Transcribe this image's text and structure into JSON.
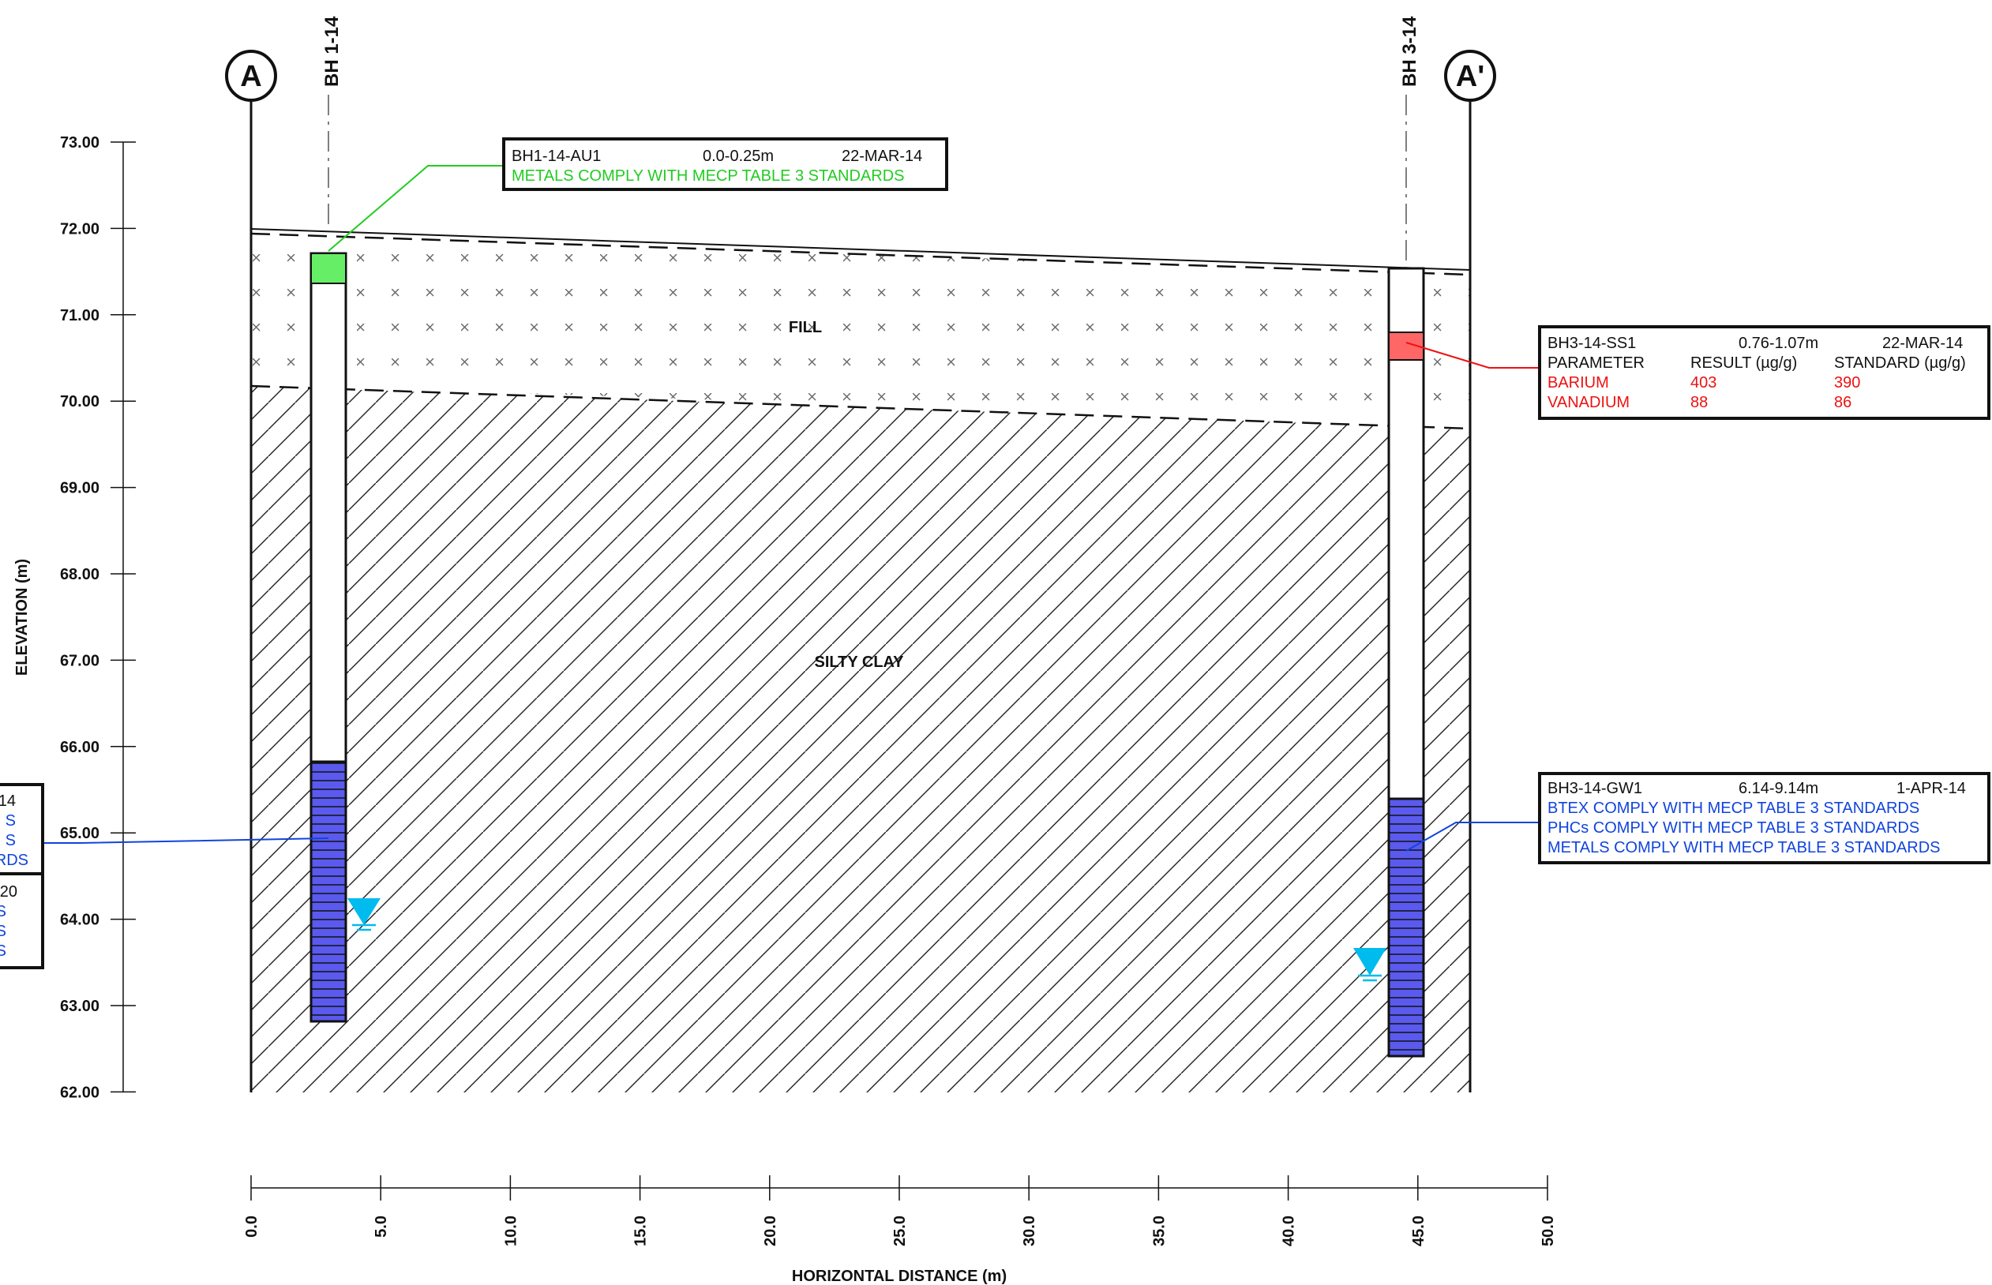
{
  "axis": {
    "y_label": "ELEVATION (m)",
    "x_label": "HORIZONTAL DISTANCE (m)",
    "y_ticks": [
      "73.00",
      "72.00",
      "71.00",
      "70.00",
      "69.00",
      "68.00",
      "67.00",
      "66.00",
      "65.00",
      "64.00",
      "63.00",
      "62.00"
    ],
    "y_values": [
      73,
      72,
      71,
      70,
      69,
      68,
      67,
      66,
      65,
      64,
      63,
      62
    ],
    "x_ticks": [
      "0.0",
      "5.0",
      "10.0",
      "15.0",
      "20.0",
      "25.0",
      "30.0",
      "35.0",
      "40.0",
      "45.0",
      "50.0"
    ],
    "x_values": [
      0,
      5,
      10,
      15,
      20,
      25,
      30,
      35,
      40,
      45,
      50
    ]
  },
  "section": {
    "start_label": "A",
    "end_label": "A'"
  },
  "strata": {
    "fill_label": "FILL",
    "clay_label": "SILTY CLAY"
  },
  "colors": {
    "green": "#22cc22",
    "red": "#ee1111",
    "blue": "#1144dd",
    "screen": "#5a5aee",
    "water": "#00bbee",
    "green_sample": "#66ee66",
    "red_sample": "#ff6666"
  },
  "boreholes": [
    {
      "id": "BH 1-14"
    },
    {
      "id": "BH 3-14"
    }
  ],
  "callouts": {
    "bh1_au1": {
      "sample": "BH1-14-AU1",
      "depth": "0.0-0.25m",
      "date": "22-MAR-14",
      "note": "METALS COMPLY WITH MECP TABLE 3 STANDARDS"
    },
    "bh3_ss1": {
      "sample": "BH3-14-SS1",
      "depth": "0.76-1.07m",
      "date": "22-MAR-14",
      "col_param": "PARAMETER",
      "col_result": "RESULT (µg/g)",
      "col_standard": "STANDARD (µg/g)",
      "rows": [
        {
          "param": "BARIUM",
          "result": "403",
          "standard": "390"
        },
        {
          "param": "VANADIUM",
          "result": "88",
          "standard": "86"
        }
      ]
    },
    "bh3_gw1": {
      "sample": "BH3-14-GW1",
      "depth": "6.14-9.14m",
      "date": "1-APR-14",
      "lines": [
        "BTEX COMPLY WITH MECP TABLE 3 STANDARDS",
        "PHCs COMPLY WITH MECP TABLE 3 STANDARDS",
        "METALS COMPLY WITH MECP TABLE 3 STANDARDS"
      ]
    },
    "bh1_left_upper": {
      "lines": [
        "14",
        "S",
        "S",
        "RDS"
      ]
    },
    "bh1_left_lower": {
      "lines": [
        "20",
        "S",
        "S",
        "S"
      ]
    }
  }
}
